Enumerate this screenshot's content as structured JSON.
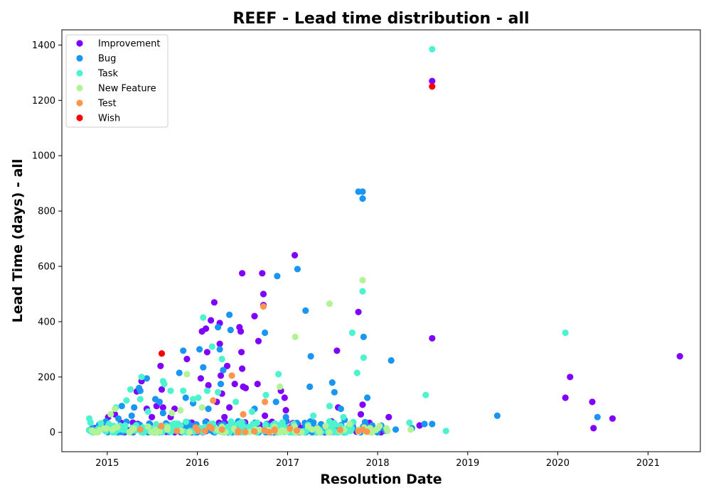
{
  "chart_data": {
    "type": "scatter",
    "title": "REEF - Lead time distribution - all",
    "xlabel": "Resolution Date",
    "ylabel": "Lead Time (days) - all",
    "xlim": [
      "2014-07-01",
      "2021-08-01"
    ],
    "ylim": [
      -70,
      1455
    ],
    "x_ticks": [
      "2015",
      "2016",
      "2017",
      "2018",
      "2019",
      "2020",
      "2021"
    ],
    "y_ticks": [
      "0",
      "200",
      "400",
      "600",
      "800",
      "1000",
      "1200",
      "1400"
    ],
    "grid": false,
    "legend_position": "top-left",
    "series": [
      {
        "name": "Improvement",
        "color": "#8000ff",
        "points": [
          [
            "2014-10-20",
            8
          ],
          [
            "2014-12-15",
            18
          ],
          [
            "2015-01-05",
            55
          ],
          [
            "2015-02-01",
            65
          ],
          [
            "2015-03-20",
            8
          ],
          [
            "2015-04-15",
            35
          ],
          [
            "2015-05-01",
            148
          ],
          [
            "2015-05-20",
            185
          ],
          [
            "2015-06-10",
            85
          ],
          [
            "2015-07-01",
            55
          ],
          [
            "2015-07-20",
            95
          ],
          [
            "2015-08-05",
            240
          ],
          [
            "2015-08-10",
            155
          ],
          [
            "2015-08-15",
            90
          ],
          [
            "2015-09-15",
            55
          ],
          [
            "2015-10-01",
            85
          ],
          [
            "2015-11-05",
            10
          ],
          [
            "2015-11-20",
            265
          ],
          [
            "2015-12-10",
            35
          ],
          [
            "2016-01-15",
            195
          ],
          [
            "2016-01-20",
            365
          ],
          [
            "2016-02-05",
            375
          ],
          [
            "2016-02-10",
            290
          ],
          [
            "2016-02-15",
            170
          ],
          [
            "2016-02-25",
            405
          ],
          [
            "2016-03-10",
            470
          ],
          [
            "2016-03-20",
            110
          ],
          [
            "2016-04-01",
            395
          ],
          [
            "2016-04-01",
            320
          ],
          [
            "2016-04-05",
            205
          ],
          [
            "2016-04-10",
            140
          ],
          [
            "2016-04-20",
            55
          ],
          [
            "2016-05-01",
            240
          ],
          [
            "2016-05-10",
            90
          ],
          [
            "2016-06-01",
            175
          ],
          [
            "2016-06-20",
            380
          ],
          [
            "2016-06-25",
            365
          ],
          [
            "2016-06-28",
            290
          ],
          [
            "2016-07-01",
            575
          ],
          [
            "2016-07-01",
            230
          ],
          [
            "2016-07-05",
            165
          ],
          [
            "2016-07-15",
            160
          ],
          [
            "2016-08-20",
            420
          ],
          [
            "2016-09-01",
            175
          ],
          [
            "2016-09-05",
            330
          ],
          [
            "2016-09-10",
            15
          ],
          [
            "2016-09-20",
            575
          ],
          [
            "2016-09-25",
            500
          ],
          [
            "2016-09-25",
            460
          ],
          [
            "2016-10-01",
            60
          ],
          [
            "2016-10-15",
            30
          ],
          [
            "2016-12-05",
            150
          ],
          [
            "2016-12-20",
            125
          ],
          [
            "2016-12-25",
            80
          ],
          [
            "2017-01-30",
            640
          ],
          [
            "2017-02-10",
            25
          ],
          [
            "2017-07-20",
            295
          ],
          [
            "2017-07-25",
            90
          ],
          [
            "2017-10-15",
            435
          ],
          [
            "2017-10-25",
            65
          ],
          [
            "2017-11-01",
            100
          ],
          [
            "2017-12-20",
            5
          ],
          [
            "2018-02-15",
            55
          ],
          [
            "2018-06-20",
            25
          ],
          [
            "2018-08-10",
            1270
          ],
          [
            "2018-08-10",
            340
          ],
          [
            "2020-02-01",
            125
          ],
          [
            "2020-02-20",
            200
          ],
          [
            "2020-05-20",
            110
          ],
          [
            "2020-05-25",
            15
          ],
          [
            "2020-08-10",
            50
          ],
          [
            "2021-05-10",
            275
          ]
        ]
      },
      {
        "name": "Bug",
        "color": "#1996f3",
        "points": [
          [
            "2014-11-01",
            15
          ],
          [
            "2015-01-01",
            5
          ],
          [
            "2015-02-15",
            50
          ],
          [
            "2015-03-01",
            95
          ],
          [
            "2015-04-10",
            60
          ],
          [
            "2015-04-20",
            90
          ],
          [
            "2015-05-10",
            160
          ],
          [
            "2015-05-15",
            150
          ],
          [
            "2015-06-10",
            195
          ],
          [
            "2015-07-15",
            120
          ],
          [
            "2015-08-01",
            110
          ],
          [
            "2015-08-15",
            70
          ],
          [
            "2015-10-20",
            215
          ],
          [
            "2015-11-05",
            295
          ],
          [
            "2015-11-15",
            125
          ],
          [
            "2015-12-15",
            105
          ],
          [
            "2016-01-10",
            300
          ],
          [
            "2016-01-25",
            235
          ],
          [
            "2016-02-15",
            85
          ],
          [
            "2016-03-25",
            380
          ],
          [
            "2016-04-01",
            300
          ],
          [
            "2016-04-05",
            175
          ],
          [
            "2016-04-15",
            225
          ],
          [
            "2016-05-10",
            425
          ],
          [
            "2016-05-15",
            370
          ],
          [
            "2016-06-15",
            40
          ],
          [
            "2016-08-20",
            85
          ],
          [
            "2016-10-01",
            360
          ],
          [
            "2016-11-15",
            110
          ],
          [
            "2016-11-20",
            565
          ],
          [
            "2016-12-25",
            55
          ],
          [
            "2017-02-10",
            590
          ],
          [
            "2017-03-15",
            440
          ],
          [
            "2017-04-01",
            165
          ],
          [
            "2017-04-05",
            275
          ],
          [
            "2017-07-01",
            180
          ],
          [
            "2017-07-10",
            145
          ],
          [
            "2017-08-05",
            85
          ],
          [
            "2017-08-20",
            45
          ],
          [
            "2017-09-25",
            15
          ],
          [
            "2017-10-15",
            870
          ],
          [
            "2017-11-01",
            870
          ],
          [
            "2017-11-01",
            845
          ],
          [
            "2017-11-05",
            345
          ],
          [
            "2017-11-20",
            125
          ],
          [
            "2017-12-10",
            25
          ],
          [
            "2018-02-25",
            260
          ],
          [
            "2018-03-15",
            10
          ],
          [
            "2018-05-20",
            15
          ],
          [
            "2018-07-10",
            30
          ],
          [
            "2018-08-10",
            30
          ],
          [
            "2019-05-01",
            60
          ],
          [
            "2020-06-10",
            55
          ]
        ]
      },
      {
        "name": "Task",
        "color": "#4df3ce",
        "points": [
          [
            "2014-10-20",
            50
          ],
          [
            "2014-10-25",
            35
          ],
          [
            "2014-11-05",
            5
          ],
          [
            "2015-02-05",
            90
          ],
          [
            "2015-02-20",
            25
          ],
          [
            "2015-03-20",
            115
          ],
          [
            "2015-04-05",
            155
          ],
          [
            "2015-05-15",
            120
          ],
          [
            "2015-05-20",
            200
          ],
          [
            "2015-06-15",
            75
          ],
          [
            "2015-08-15",
            185
          ],
          [
            "2015-08-20",
            175
          ],
          [
            "2015-09-15",
            150
          ],
          [
            "2015-11-05",
            150
          ],
          [
            "2015-12-15",
            120
          ],
          [
            "2016-01-05",
            125
          ],
          [
            "2016-01-25",
            415
          ],
          [
            "2016-02-10",
            150
          ],
          [
            "2016-03-01",
            310
          ],
          [
            "2016-03-25",
            145
          ],
          [
            "2016-04-10",
            265
          ],
          [
            "2016-05-05",
            20
          ],
          [
            "2016-06-05",
            110
          ],
          [
            "2016-08-10",
            75
          ],
          [
            "2016-10-05",
            135
          ],
          [
            "2016-11-25",
            210
          ],
          [
            "2017-04-15",
            60
          ],
          [
            "2017-06-20",
            95
          ],
          [
            "2017-08-15",
            55
          ],
          [
            "2017-09-20",
            360
          ],
          [
            "2017-10-10",
            215
          ],
          [
            "2017-11-01",
            510
          ],
          [
            "2017-11-05",
            270
          ],
          [
            "2018-05-10",
            35
          ],
          [
            "2018-07-15",
            135
          ],
          [
            "2018-08-10",
            1385
          ],
          [
            "2018-10-05",
            5
          ],
          [
            "2020-02-01",
            360
          ]
        ]
      },
      {
        "name": "New Feature",
        "color": "#b2f396",
        "points": [
          [
            "2015-01-15",
            65
          ],
          [
            "2015-02-01",
            85
          ],
          [
            "2015-06-15",
            20
          ],
          [
            "2015-09-20",
            70
          ],
          [
            "2015-10-25",
            80
          ],
          [
            "2015-11-20",
            210
          ],
          [
            "2016-01-20",
            90
          ],
          [
            "2016-06-01",
            10
          ],
          [
            "2016-12-01",
            165
          ],
          [
            "2017-02-01",
            345
          ],
          [
            "2017-06-20",
            465
          ],
          [
            "2017-09-10",
            30
          ],
          [
            "2017-11-01",
            550
          ],
          [
            "2018-02-10",
            5
          ],
          [
            "2018-05-15",
            10
          ]
        ]
      },
      {
        "name": "Test",
        "color": "#ff964f",
        "points": [
          [
            "2015-05-15",
            10
          ],
          [
            "2015-10-10",
            5
          ],
          [
            "2016-02-01",
            5
          ],
          [
            "2016-02-20",
            20
          ],
          [
            "2016-03-05",
            115
          ],
          [
            "2016-04-10",
            10
          ],
          [
            "2016-05-20",
            205
          ],
          [
            "2016-06-15",
            5
          ],
          [
            "2016-07-05",
            65
          ],
          [
            "2016-09-25",
            455
          ],
          [
            "2016-10-01",
            110
          ],
          [
            "2016-11-10",
            10
          ],
          [
            "2017-10-15",
            5
          ],
          [
            "2017-11-01",
            10
          ]
        ]
      },
      {
        "name": "Wish",
        "color": "#ff0000",
        "points": [
          [
            "2015-08-10",
            285
          ],
          [
            "2018-08-10",
            1250
          ]
        ]
      }
    ],
    "dense_band": {
      "comment": "",
      "from": "2014-10-15",
      "to": "2018-04-15",
      "max_lead": 25
    }
  }
}
